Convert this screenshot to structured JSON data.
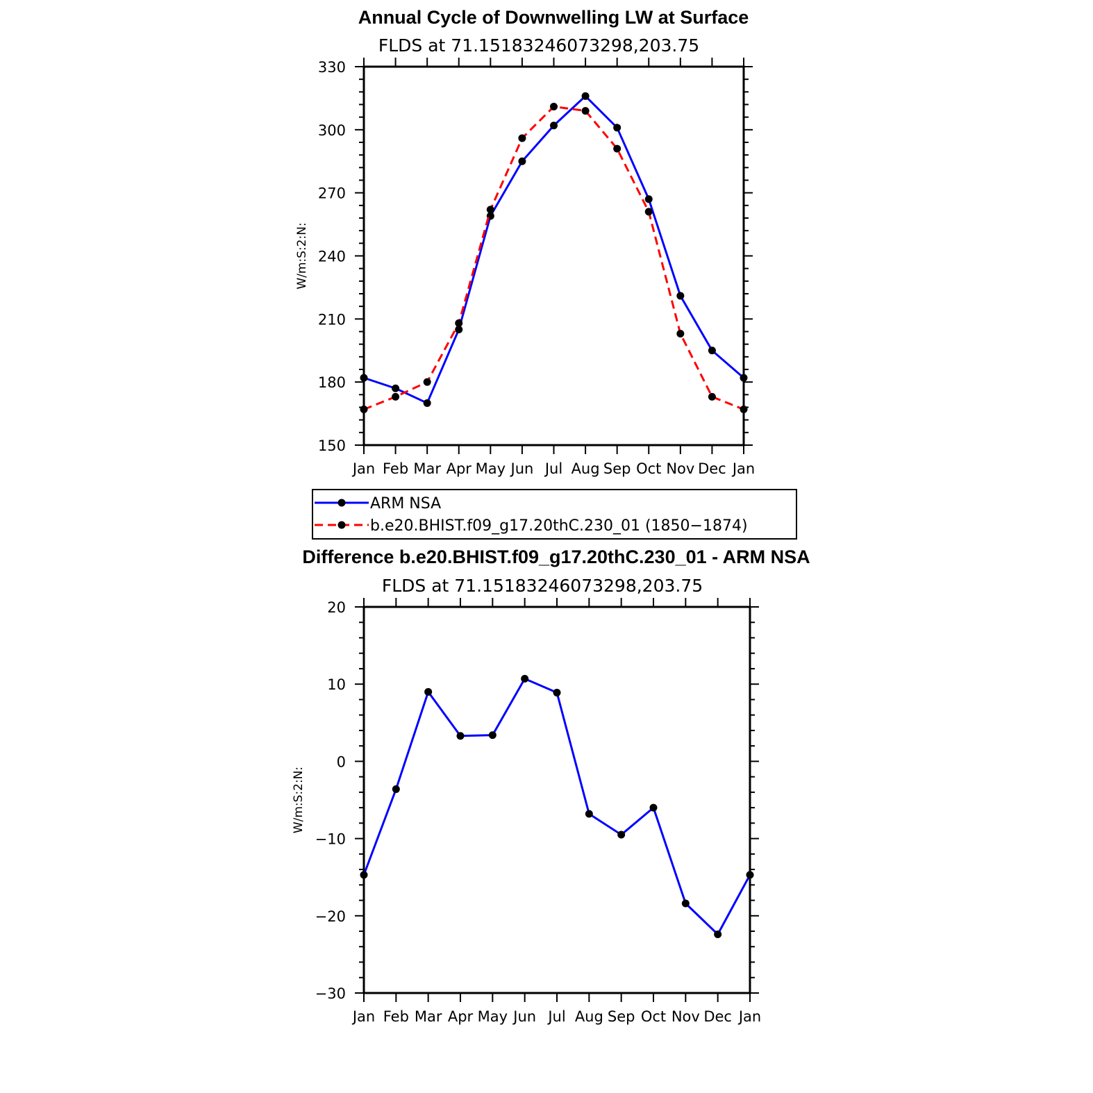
{
  "chart_data": [
    {
      "type": "line",
      "title": "Annual Cycle of Downwelling LW at Surface",
      "subtitle": "FLDS at 71.15183246073298,203.75",
      "ylabel": "W/m:S:2:N:",
      "xlabel": "",
      "categories": [
        "Jan",
        "Feb",
        "Mar",
        "Apr",
        "May",
        "Jun",
        "Jul",
        "Aug",
        "Sep",
        "Oct",
        "Nov",
        "Dec",
        "Jan"
      ],
      "ylim": [
        150,
        330
      ],
      "yticks": [
        150,
        180,
        210,
        240,
        270,
        300,
        330
      ],
      "grid": false,
      "series": [
        {
          "name": "ARM NSA",
          "color": "#0000ff",
          "dash": "solid",
          "values": [
            182,
            177,
            170,
            205,
            259,
            285,
            302,
            316,
            301,
            267,
            221,
            195,
            182
          ]
        },
        {
          "name": "b.e20.BHIST.f09_g17.20thC.230_01 (1850−1874)",
          "color": "#ff0000",
          "dash": "dashed",
          "values": [
            167,
            173,
            180,
            208,
            262,
            296,
            311,
            309,
            291,
            261,
            203,
            173,
            167
          ]
        }
      ],
      "legend_position": "below"
    },
    {
      "type": "line",
      "title": "Difference b.e20.BHIST.f09_g17.20thC.230_01 - ARM NSA",
      "subtitle": "FLDS at 71.15183246073298,203.75",
      "ylabel": "W/m:S:2:N:",
      "xlabel": "",
      "categories": [
        "Jan",
        "Feb",
        "Mar",
        "Apr",
        "May",
        "Jun",
        "Jul",
        "Aug",
        "Sep",
        "Oct",
        "Nov",
        "Dec",
        "Jan"
      ],
      "ylim": [
        -30,
        20
      ],
      "yticks": [
        -30,
        -20,
        -10,
        0,
        10,
        20
      ],
      "ytick_labels": [
        "−30",
        "−20",
        "−10",
        "0",
        "10",
        "20"
      ],
      "grid": false,
      "series": [
        {
          "color": "#0000ff",
          "dash": "solid",
          "values": [
            -14.7,
            -3.6,
            9.0,
            3.3,
            3.4,
            10.7,
            8.9,
            -6.8,
            -9.5,
            -6.0,
            -18.4,
            -22.4,
            -14.7
          ]
        }
      ]
    }
  ]
}
